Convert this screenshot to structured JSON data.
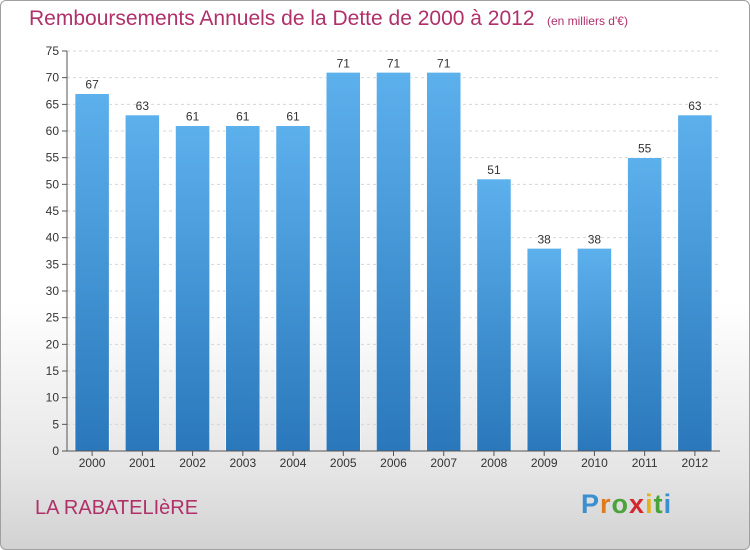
{
  "title": "Remboursements Annuels de la Dette de 2000 à 2012",
  "unit_note": "(en milliers d'€)",
  "location": "LA RABATELIèRE",
  "brand": {
    "letters": [
      "P",
      "r",
      "o",
      "x",
      "i",
      "t",
      "i"
    ],
    "colors": [
      "#3a8fd0",
      "#e07b1a",
      "#4aa33a",
      "#d3262e",
      "#e2b31a",
      "#4aa33a",
      "#3a8fd0"
    ]
  },
  "colors": {
    "bar": "#3f95d8",
    "accent": "#b0306a"
  },
  "chart_data": {
    "type": "bar",
    "title": "Remboursements Annuels de la Dette de 2000 à 2012",
    "xlabel": "",
    "ylabel": "",
    "categories": [
      "2000",
      "2001",
      "2002",
      "2003",
      "2004",
      "2005",
      "2006",
      "2007",
      "2008",
      "2009",
      "2010",
      "2011",
      "2012"
    ],
    "values": [
      67,
      63,
      61,
      61,
      61,
      71,
      71,
      71,
      51,
      38,
      38,
      55,
      63
    ],
    "ylim": [
      0,
      75
    ],
    "yticks": [
      0,
      5,
      10,
      15,
      20,
      25,
      30,
      35,
      40,
      45,
      50,
      55,
      60,
      65,
      70,
      75
    ],
    "grid": true,
    "legend": "none"
  }
}
